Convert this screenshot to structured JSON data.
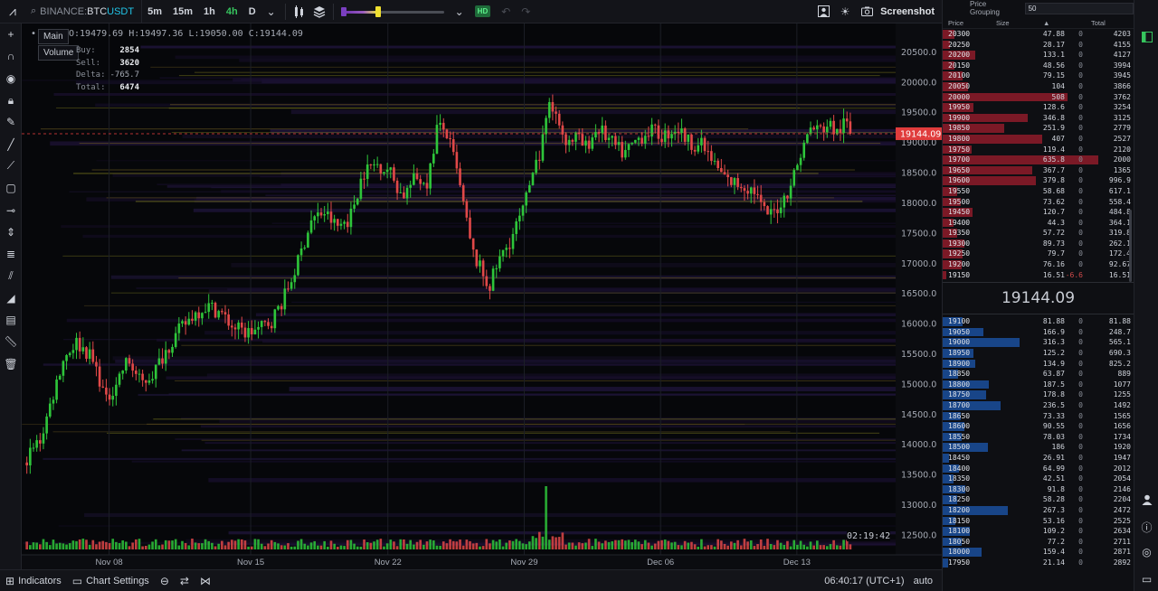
{
  "toolbar": {
    "symbol": {
      "exchange": "BINANCE:",
      "base": "BTC",
      "quote": "USDT"
    },
    "timeframes": [
      {
        "label": "5m",
        "active": false
      },
      {
        "label": "15m",
        "active": false
      },
      {
        "label": "1h",
        "active": false
      },
      {
        "label": "4h",
        "active": true
      },
      {
        "label": "D",
        "active": false
      }
    ],
    "hd_badge": "HD",
    "screenshot_label": "Screenshot",
    "heatmap_level": 0.35
  },
  "left_tools": [
    "crosshair-icon",
    "magnet-icon",
    "eye-icon",
    "lock-icon",
    "pen-icon",
    "line-icon",
    "ray-icon",
    "rectangle-icon",
    "horizontal-ray-icon",
    "vertical-line-icon",
    "fib-icon",
    "parallel-channel-icon",
    "volume-profile-icon",
    "note-icon",
    "ruler-icon",
    "trash-icon"
  ],
  "legend": {
    "main_label": "Main",
    "volume_label": "Volume",
    "ohlc": {
      "o": "O:19479.69",
      "h": "H:19497.36",
      "l": "L:19050.00",
      "c": "C:19144.09"
    },
    "stats": [
      {
        "key": "Buy:",
        "value": "2854"
      },
      {
        "key": "Sell:",
        "value": "3620"
      },
      {
        "key": "Delta:",
        "value": "-765.7"
      },
      {
        "key": "Total:",
        "value": "6474"
      }
    ]
  },
  "chart_data": {
    "type": "candlestick",
    "symbol": "BINANCE:BTCUSDT",
    "timeframe": "4h",
    "last_price": "19144.09",
    "countdown": "02:19:42",
    "ylim": [
      12350,
      20700
    ],
    "yticks": [
      "20500.0",
      "20000.0",
      "19500.0",
      "19000.0",
      "18500.0",
      "18000.0",
      "17500.0",
      "17000.0",
      "16500.0",
      "16000.0",
      "15500.0",
      "15000.0",
      "14500.0",
      "14000.0",
      "13500.0",
      "13000.0",
      "12500.0"
    ],
    "xticks": [
      {
        "label": "Nov 08",
        "pos": 0.1
      },
      {
        "label": "Nov 15",
        "pos": 0.262
      },
      {
        "label": "Nov 22",
        "pos": 0.419
      },
      {
        "label": "Nov 29",
        "pos": 0.575
      },
      {
        "label": "Dec 06",
        "pos": 0.731
      },
      {
        "label": "Dec 13",
        "pos": 0.887
      }
    ],
    "path": [
      [
        0,
        13700
      ],
      [
        0.02,
        14100
      ],
      [
        0.045,
        15400
      ],
      [
        0.06,
        15700
      ],
      [
        0.075,
        15500
      ],
      [
        0.085,
        15200
      ],
      [
        0.095,
        14700
      ],
      [
        0.105,
        15000
      ],
      [
        0.12,
        15400
      ],
      [
        0.135,
        15000
      ],
      [
        0.15,
        15200
      ],
      [
        0.165,
        15600
      ],
      [
        0.18,
        15900
      ],
      [
        0.195,
        16150
      ],
      [
        0.21,
        16300
      ],
      [
        0.225,
        16200
      ],
      [
        0.24,
        15950
      ],
      [
        0.255,
        15850
      ],
      [
        0.27,
        15900
      ],
      [
        0.285,
        16050
      ],
      [
        0.3,
        16450
      ],
      [
        0.315,
        17000
      ],
      [
        0.33,
        17700
      ],
      [
        0.345,
        17850
      ],
      [
        0.36,
        17600
      ],
      [
        0.375,
        17750
      ],
      [
        0.39,
        18500
      ],
      [
        0.405,
        18650
      ],
      [
        0.42,
        18550
      ],
      [
        0.435,
        18100
      ],
      [
        0.45,
        18400
      ],
      [
        0.465,
        18350
      ],
      [
        0.475,
        19250
      ],
      [
        0.485,
        19200
      ],
      [
        0.495,
        18700
      ],
      [
        0.505,
        18000
      ],
      [
        0.515,
        17200
      ],
      [
        0.525,
        16900
      ],
      [
        0.535,
        16600
      ],
      [
        0.545,
        17000
      ],
      [
        0.56,
        17400
      ],
      [
        0.575,
        17900
      ],
      [
        0.585,
        18500
      ],
      [
        0.595,
        18900
      ],
      [
        0.605,
        19600
      ],
      [
        0.615,
        19300
      ],
      [
        0.625,
        19000
      ],
      [
        0.635,
        19100
      ],
      [
        0.645,
        18900
      ],
      [
        0.66,
        19250
      ],
      [
        0.675,
        19000
      ],
      [
        0.69,
        18800
      ],
      [
        0.705,
        19050
      ],
      [
        0.72,
        19200
      ],
      [
        0.735,
        19100
      ],
      [
        0.75,
        19250
      ],
      [
        0.765,
        19000
      ],
      [
        0.78,
        18950
      ],
      [
        0.795,
        18600
      ],
      [
        0.81,
        18350
      ],
      [
        0.825,
        18300
      ],
      [
        0.84,
        18200
      ],
      [
        0.85,
        17850
      ],
      [
        0.86,
        17800
      ],
      [
        0.875,
        18100
      ],
      [
        0.885,
        18450
      ],
      [
        0.895,
        18900
      ],
      [
        0.905,
        19250
      ],
      [
        0.915,
        19200
      ],
      [
        0.925,
        19300
      ],
      [
        0.935,
        19150
      ],
      [
        0.945,
        19350
      ],
      [
        0.95,
        19144
      ]
    ],
    "spike": {
      "pos": 0.6,
      "ratio": 1.0
    }
  },
  "bottom": {
    "indicators_label": "Indicators",
    "chart_settings_label": "Chart Settings",
    "clock": "06:40:17 (UTC+1)",
    "scale_mode": "auto"
  },
  "orderbook": {
    "grouping_label": "Price Grouping",
    "grouping_value": "50",
    "columns": {
      "price": "Price",
      "size": "Size",
      "total": "Total"
    },
    "asks": [
      {
        "price": "20300",
        "size": "47.88",
        "delta": "0",
        "total": "4203",
        "size_frac": 0.075
      },
      {
        "price": "20250",
        "size": "28.17",
        "delta": "0",
        "total": "4155",
        "size_frac": 0.044
      },
      {
        "price": "20200",
        "size": "133.1",
        "delta": "0",
        "total": "4127",
        "size_frac": 0.21
      },
      {
        "price": "20150",
        "size": "48.56",
        "delta": "0",
        "total": "3994",
        "size_frac": 0.076
      },
      {
        "price": "20100",
        "size": "79.15",
        "delta": "0",
        "total": "3945",
        "size_frac": 0.125
      },
      {
        "price": "20050",
        "size": "104",
        "delta": "0",
        "total": "3866",
        "size_frac": 0.164
      },
      {
        "price": "20000",
        "size": "508",
        "delta": "0",
        "total": "3762",
        "size_frac": 0.8
      },
      {
        "price": "19950",
        "size": "128.6",
        "delta": "0",
        "total": "3254",
        "size_frac": 0.2
      },
      {
        "price": "19900",
        "size": "346.8",
        "delta": "0",
        "total": "3125",
        "size_frac": 0.546
      },
      {
        "price": "19850",
        "size": "251.9",
        "delta": "0",
        "total": "2779",
        "size_frac": 0.397
      },
      {
        "price": "19800",
        "size": "407",
        "delta": "0",
        "total": "2527",
        "size_frac": 0.64
      },
      {
        "price": "19750",
        "size": "119.4",
        "delta": "0",
        "total": "2120",
        "size_frac": 0.188
      },
      {
        "price": "19700",
        "size": "635.8",
        "delta": "0",
        "total": "2000",
        "size_frac": 1.0
      },
      {
        "price": "19650",
        "size": "367.7",
        "delta": "0",
        "total": "1365",
        "size_frac": 0.578
      },
      {
        "price": "19600",
        "size": "379.8",
        "delta": "0",
        "total": "996.9",
        "size_frac": 0.597
      },
      {
        "price": "19550",
        "size": "58.68",
        "delta": "0",
        "total": "617.1",
        "size_frac": 0.092
      },
      {
        "price": "19500",
        "size": "73.62",
        "delta": "0",
        "total": "558.4",
        "size_frac": 0.116
      },
      {
        "price": "19450",
        "size": "120.7",
        "delta": "0",
        "total": "484.8",
        "size_frac": 0.19
      },
      {
        "price": "19400",
        "size": "44.3",
        "delta": "0",
        "total": "364.1",
        "size_frac": 0.07
      },
      {
        "price": "19350",
        "size": "57.72",
        "delta": "0",
        "total": "319.8",
        "size_frac": 0.091
      },
      {
        "price": "19300",
        "size": "89.73",
        "delta": "0",
        "total": "262.1",
        "size_frac": 0.141
      },
      {
        "price": "19250",
        "size": "79.7",
        "delta": "0",
        "total": "172.4",
        "size_frac": 0.125
      },
      {
        "price": "19200",
        "size": "76.16",
        "delta": "0",
        "total": "92.67",
        "size_frac": 0.12
      },
      {
        "price": "19150",
        "size": "16.51",
        "delta": "-6.6",
        "total": "16.51",
        "size_frac": 0.026
      }
    ],
    "mid_price": "19144.09",
    "bids": [
      {
        "price": "19100",
        "size": "81.88",
        "delta": "0",
        "total": "81.88",
        "size_frac": 0.129
      },
      {
        "price": "19050",
        "size": "166.9",
        "delta": "0",
        "total": "248.7",
        "size_frac": 0.262
      },
      {
        "price": "19000",
        "size": "316.3",
        "delta": "0",
        "total": "565.1",
        "size_frac": 0.497
      },
      {
        "price": "18950",
        "size": "125.2",
        "delta": "0",
        "total": "690.3",
        "size_frac": 0.197
      },
      {
        "price": "18900",
        "size": "134.9",
        "delta": "0",
        "total": "825.2",
        "size_frac": 0.212
      },
      {
        "price": "18850",
        "size": "63.87",
        "delta": "0",
        "total": "889",
        "size_frac": 0.1
      },
      {
        "price": "18800",
        "size": "187.5",
        "delta": "0",
        "total": "1077",
        "size_frac": 0.295
      },
      {
        "price": "18750",
        "size": "178.8",
        "delta": "0",
        "total": "1255",
        "size_frac": 0.281
      },
      {
        "price": "18700",
        "size": "236.5",
        "delta": "0",
        "total": "1492",
        "size_frac": 0.372
      },
      {
        "price": "18650",
        "size": "73.33",
        "delta": "0",
        "total": "1565",
        "size_frac": 0.115
      },
      {
        "price": "18600",
        "size": "90.55",
        "delta": "0",
        "total": "1656",
        "size_frac": 0.142
      },
      {
        "price": "18550",
        "size": "78.03",
        "delta": "0",
        "total": "1734",
        "size_frac": 0.123
      },
      {
        "price": "18500",
        "size": "186",
        "delta": "0",
        "total": "1920",
        "size_frac": 0.292
      },
      {
        "price": "18450",
        "size": "26.91",
        "delta": "0",
        "total": "1947",
        "size_frac": 0.042
      },
      {
        "price": "18400",
        "size": "64.99",
        "delta": "0",
        "total": "2012",
        "size_frac": 0.102
      },
      {
        "price": "18350",
        "size": "42.51",
        "delta": "0",
        "total": "2054",
        "size_frac": 0.067
      },
      {
        "price": "18300",
        "size": "91.8",
        "delta": "0",
        "total": "2146",
        "size_frac": 0.144
      },
      {
        "price": "18250",
        "size": "58.28",
        "delta": "0",
        "total": "2204",
        "size_frac": 0.092
      },
      {
        "price": "18200",
        "size": "267.3",
        "delta": "0",
        "total": "2472",
        "size_frac": 0.42
      },
      {
        "price": "18150",
        "size": "53.16",
        "delta": "0",
        "total": "2525",
        "size_frac": 0.084
      },
      {
        "price": "18100",
        "size": "109.2",
        "delta": "0",
        "total": "2634",
        "size_frac": 0.172
      },
      {
        "price": "18050",
        "size": "77.2",
        "delta": "0",
        "total": "2711",
        "size_frac": 0.121
      },
      {
        "price": "18000",
        "size": "159.4",
        "delta": "0",
        "total": "2871",
        "size_frac": 0.251
      },
      {
        "price": "17950",
        "size": "21.14",
        "delta": "0",
        "total": "2892",
        "size_frac": 0.033
      }
    ]
  },
  "colors": {
    "up": "#2ec53a",
    "down": "#e04848",
    "ask_bar": "#a01e2d",
    "bid_bar": "#194b96",
    "price_tag": "#e03c3c",
    "accent": "#36c55e"
  }
}
